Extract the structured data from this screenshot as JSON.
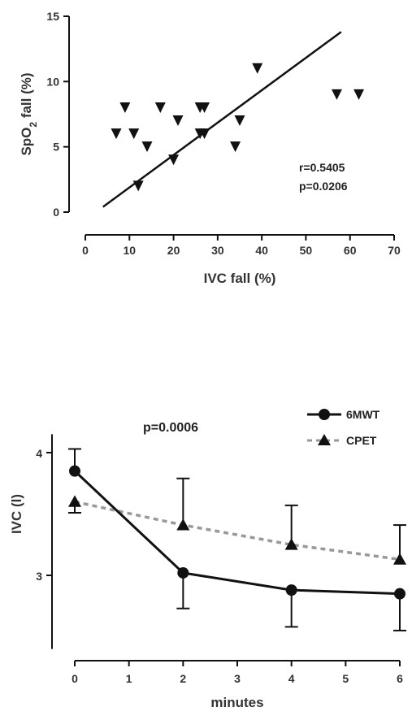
{
  "chart_data": [
    {
      "type": "scatter",
      "xlabel": "IVC fall (%)",
      "ylabel_main": "SpO",
      "ylabel_sub": "2",
      "ylabel_rest": " fall (%)",
      "xlim": [
        0,
        70
      ],
      "ylim": [
        0,
        15
      ],
      "x_ticks": [
        0,
        10,
        20,
        30,
        40,
        50,
        60,
        70
      ],
      "y_ticks": [
        0,
        5,
        10,
        15
      ],
      "marker": "triangle-down",
      "points": [
        {
          "x": 7,
          "y": 6
        },
        {
          "x": 9,
          "y": 8
        },
        {
          "x": 11,
          "y": 6
        },
        {
          "x": 12,
          "y": 2
        },
        {
          "x": 14,
          "y": 5
        },
        {
          "x": 17,
          "y": 8
        },
        {
          "x": 20,
          "y": 4
        },
        {
          "x": 21,
          "y": 7
        },
        {
          "x": 26,
          "y": 8
        },
        {
          "x": 26,
          "y": 6
        },
        {
          "x": 27,
          "y": 8
        },
        {
          "x": 27,
          "y": 6
        },
        {
          "x": 34,
          "y": 5
        },
        {
          "x": 35,
          "y": 7
        },
        {
          "x": 39,
          "y": 11
        },
        {
          "x": 57,
          "y": 9
        },
        {
          "x": 62,
          "y": 9
        }
      ],
      "regression": {
        "x1": 4,
        "y1": 0.4,
        "x2": 58,
        "y2": 13.8
      },
      "r_text": "r=0.5405",
      "p_text": "p=0.0206"
    },
    {
      "type": "line",
      "xlabel": "minutes",
      "ylabel": "IVC (l)",
      "xlim": [
        0,
        6
      ],
      "ylim": [
        2.4,
        4.15
      ],
      "x_ticks": [
        0,
        1,
        2,
        3,
        4,
        5,
        6
      ],
      "y_ticks": [
        3,
        4
      ],
      "p_text": "p=0.0006",
      "series": [
        {
          "name": "6MWT",
          "x": [
            0,
            2,
            4,
            6
          ],
          "y": [
            3.85,
            3.02,
            2.88,
            2.85
          ],
          "err_upper": [
            4.03,
            null,
            null,
            null
          ],
          "err_lower": [
            null,
            2.73,
            2.58,
            2.55
          ],
          "color": "#111111",
          "style": "solid",
          "marker": "circle"
        },
        {
          "name": "CPET",
          "x": [
            0,
            2,
            4,
            6
          ],
          "y": [
            3.6,
            3.41,
            3.25,
            3.13
          ],
          "err_upper": [
            null,
            3.79,
            3.57,
            3.41
          ],
          "err_lower": [
            3.51,
            null,
            null,
            null
          ],
          "color": "#999999",
          "style": "dashed",
          "marker": "triangle-up"
        }
      ]
    }
  ]
}
